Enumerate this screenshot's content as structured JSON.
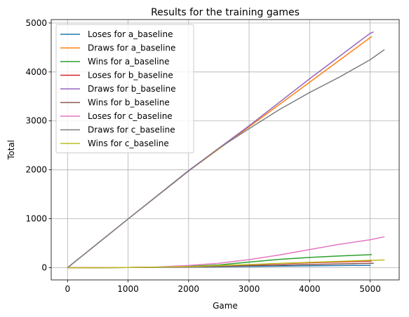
{
  "chart_data": {
    "type": "line",
    "title": "Results for the training games",
    "xlabel": "Game",
    "ylabel": "Total",
    "xlim": [
      -270,
      5480
    ],
    "ylim": [
      -250,
      5070
    ],
    "xticks": [
      0,
      1000,
      2000,
      3000,
      4000,
      5000
    ],
    "yticks": [
      0,
      1000,
      2000,
      3000,
      4000,
      5000
    ],
    "grid": true,
    "legend_position": "upper-left",
    "series": [
      {
        "name": "Loses for a_baseline",
        "color": "#1f77b4",
        "points": [
          [
            0,
            0
          ],
          [
            1000,
            3
          ],
          [
            2000,
            12
          ],
          [
            3000,
            25
          ],
          [
            4000,
            38
          ],
          [
            5000,
            48
          ]
        ]
      },
      {
        "name": "Draws for a_baseline",
        "color": "#ff7f0e",
        "points": [
          [
            0,
            0
          ],
          [
            1000,
            995
          ],
          [
            2000,
            1975
          ],
          [
            3000,
            2880
          ],
          [
            4000,
            3790
          ],
          [
            5000,
            4700
          ],
          [
            5020,
            4715
          ]
        ]
      },
      {
        "name": "Wins for a_baseline",
        "color": "#2ca02c",
        "points": [
          [
            0,
            0
          ],
          [
            1000,
            3
          ],
          [
            1500,
            10
          ],
          [
            2000,
            28
          ],
          [
            2500,
            55
          ],
          [
            3000,
            115
          ],
          [
            3500,
            170
          ],
          [
            4000,
            210
          ],
          [
            4500,
            240
          ],
          [
            5000,
            265
          ],
          [
            5020,
            268
          ]
        ]
      },
      {
        "name": "Loses for b_baseline",
        "color": "#d62728",
        "points": [
          [
            0,
            0
          ],
          [
            1000,
            4
          ],
          [
            2000,
            18
          ],
          [
            3000,
            60
          ],
          [
            4000,
            100
          ],
          [
            5000,
            135
          ],
          [
            5020,
            138
          ]
        ]
      },
      {
        "name": "Draws for b_baseline",
        "color": "#9467bd",
        "points": [
          [
            0,
            0
          ],
          [
            1000,
            995
          ],
          [
            2000,
            1985
          ],
          [
            3000,
            2900
          ],
          [
            4000,
            3860
          ],
          [
            5000,
            4790
          ],
          [
            5050,
            4815
          ]
        ]
      },
      {
        "name": "Wins for b_baseline",
        "color": "#8c564b",
        "points": [
          [
            0,
            0
          ],
          [
            1000,
            3
          ],
          [
            2000,
            15
          ],
          [
            3000,
            40
          ],
          [
            4000,
            65
          ],
          [
            5000,
            90
          ],
          [
            5050,
            92
          ]
        ]
      },
      {
        "name": "Loses for c_baseline",
        "color": "#e377c2",
        "points": [
          [
            0,
            0
          ],
          [
            1000,
            4
          ],
          [
            1500,
            15
          ],
          [
            2000,
            45
          ],
          [
            2500,
            90
          ],
          [
            3000,
            165
          ],
          [
            3500,
            260
          ],
          [
            4000,
            370
          ],
          [
            4500,
            480
          ],
          [
            5000,
            570
          ],
          [
            5230,
            630
          ]
        ]
      },
      {
        "name": "Draws for c_baseline",
        "color": "#7f7f7f",
        "points": [
          [
            0,
            0
          ],
          [
            1000,
            995
          ],
          [
            2000,
            1975
          ],
          [
            2500,
            2440
          ],
          [
            3000,
            2840
          ],
          [
            3500,
            3230
          ],
          [
            4000,
            3580
          ],
          [
            4500,
            3900
          ],
          [
            5000,
            4250
          ],
          [
            5230,
            4450
          ]
        ]
      },
      {
        "name": "Wins for c_baseline",
        "color": "#bcbd22",
        "points": [
          [
            0,
            0
          ],
          [
            1000,
            3
          ],
          [
            2000,
            20
          ],
          [
            3000,
            65
          ],
          [
            4000,
            110
          ],
          [
            5000,
            150
          ],
          [
            5230,
            158
          ]
        ]
      }
    ]
  }
}
